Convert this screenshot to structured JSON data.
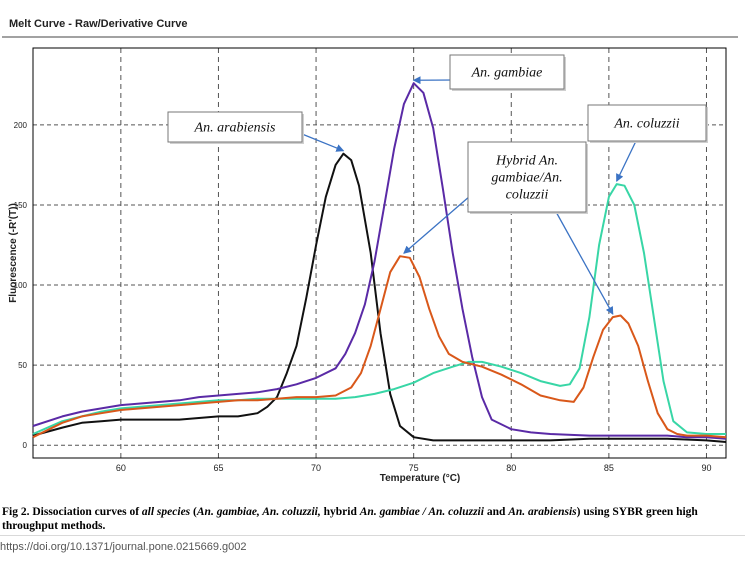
{
  "chart_data": {
    "type": "line",
    "title": "Melt Curve - Raw/Derivative Curve",
    "xlabel": "Temperature (°C)",
    "ylabel": "Fluorescence (-R'(T))",
    "xlim": [
      55.5,
      91
    ],
    "ylim": [
      -8,
      248
    ],
    "x_ticks": [
      60,
      65,
      70,
      75,
      80,
      85,
      90
    ],
    "y_ticks": [
      0,
      50,
      100,
      150,
      200
    ],
    "grid": true,
    "series": [
      {
        "name": "An. arabiensis",
        "color": "#111111",
        "points": [
          [
            55.5,
            6
          ],
          [
            57,
            11
          ],
          [
            58,
            14
          ],
          [
            59,
            15
          ],
          [
            60,
            16
          ],
          [
            61,
            16
          ],
          [
            62,
            16
          ],
          [
            63,
            16
          ],
          [
            64,
            17
          ],
          [
            65,
            18
          ],
          [
            66,
            18
          ],
          [
            67,
            20
          ],
          [
            67.5,
            24
          ],
          [
            68,
            30
          ],
          [
            68.5,
            45
          ],
          [
            69,
            62
          ],
          [
            69.5,
            92
          ],
          [
            70,
            125
          ],
          [
            70.5,
            155
          ],
          [
            71,
            175
          ],
          [
            71.4,
            182
          ],
          [
            71.8,
            178
          ],
          [
            72.2,
            162
          ],
          [
            72.8,
            120
          ],
          [
            73.3,
            70
          ],
          [
            73.8,
            32
          ],
          [
            74.3,
            12
          ],
          [
            75,
            5
          ],
          [
            76,
            3
          ],
          [
            78,
            3
          ],
          [
            80,
            3
          ],
          [
            82,
            3
          ],
          [
            84,
            4
          ],
          [
            86,
            4
          ],
          [
            88,
            4
          ],
          [
            90,
            3
          ],
          [
            91,
            2
          ]
        ]
      },
      {
        "name": "An. gambiae",
        "color": "#5a2aa6",
        "points": [
          [
            55.5,
            12
          ],
          [
            57,
            18
          ],
          [
            58,
            21
          ],
          [
            59,
            23
          ],
          [
            60,
            25
          ],
          [
            61,
            26
          ],
          [
            62,
            27
          ],
          [
            63,
            28
          ],
          [
            64,
            30
          ],
          [
            65,
            31
          ],
          [
            66,
            32
          ],
          [
            67,
            33
          ],
          [
            68,
            35
          ],
          [
            69,
            38
          ],
          [
            70,
            42
          ],
          [
            71,
            48
          ],
          [
            71.5,
            57
          ],
          [
            72,
            70
          ],
          [
            72.5,
            88
          ],
          [
            73,
            115
          ],
          [
            73.5,
            150
          ],
          [
            74,
            185
          ],
          [
            74.5,
            213
          ],
          [
            75,
            226
          ],
          [
            75.5,
            220
          ],
          [
            76,
            198
          ],
          [
            76.5,
            160
          ],
          [
            77,
            120
          ],
          [
            77.5,
            85
          ],
          [
            78,
            55
          ],
          [
            78.5,
            30
          ],
          [
            79,
            16
          ],
          [
            80,
            10
          ],
          [
            81,
            8
          ],
          [
            82,
            7
          ],
          [
            84,
            6
          ],
          [
            86,
            6
          ],
          [
            88,
            6
          ],
          [
            89,
            5
          ],
          [
            90,
            5
          ],
          [
            91,
            4
          ]
        ]
      },
      {
        "name": "An. coluzzii",
        "color": "#38d6a6",
        "points": [
          [
            55.5,
            7
          ],
          [
            57,
            15
          ],
          [
            58,
            18
          ],
          [
            59,
            21
          ],
          [
            60,
            23
          ],
          [
            61,
            24
          ],
          [
            62,
            25
          ],
          [
            63,
            26
          ],
          [
            64,
            27
          ],
          [
            65,
            28
          ],
          [
            66,
            28
          ],
          [
            67,
            29
          ],
          [
            68,
            29
          ],
          [
            69,
            29
          ],
          [
            70,
            29
          ],
          [
            71,
            29
          ],
          [
            72,
            30
          ],
          [
            73,
            32
          ],
          [
            74,
            35
          ],
          [
            75,
            39
          ],
          [
            76,
            45
          ],
          [
            77,
            49
          ],
          [
            77.8,
            52
          ],
          [
            78.5,
            52
          ],
          [
            79.5,
            49
          ],
          [
            80.5,
            45
          ],
          [
            81.5,
            40
          ],
          [
            82.5,
            37
          ],
          [
            83,
            38
          ],
          [
            83.5,
            48
          ],
          [
            84,
            80
          ],
          [
            84.5,
            125
          ],
          [
            85,
            155
          ],
          [
            85.4,
            163
          ],
          [
            85.8,
            162
          ],
          [
            86.3,
            150
          ],
          [
            86.8,
            120
          ],
          [
            87.3,
            80
          ],
          [
            87.8,
            40
          ],
          [
            88.3,
            15
          ],
          [
            89,
            8
          ],
          [
            90,
            7
          ],
          [
            91,
            7
          ]
        ]
      },
      {
        "name": "Hybrid An. gambiae/An. coluzzii",
        "color": "#d9581a",
        "points": [
          [
            55.5,
            5
          ],
          [
            57,
            14
          ],
          [
            58,
            18
          ],
          [
            59,
            20
          ],
          [
            60,
            22
          ],
          [
            61,
            23
          ],
          [
            62,
            24
          ],
          [
            63,
            25
          ],
          [
            64,
            26
          ],
          [
            65,
            27
          ],
          [
            66,
            28
          ],
          [
            67,
            28
          ],
          [
            68,
            29
          ],
          [
            69,
            30
          ],
          [
            70,
            30
          ],
          [
            71,
            31
          ],
          [
            71.8,
            36
          ],
          [
            72.3,
            45
          ],
          [
            72.8,
            62
          ],
          [
            73.3,
            85
          ],
          [
            73.8,
            108
          ],
          [
            74.3,
            118
          ],
          [
            74.8,
            117
          ],
          [
            75.3,
            105
          ],
          [
            75.8,
            85
          ],
          [
            76.3,
            68
          ],
          [
            76.8,
            57
          ],
          [
            77.5,
            52
          ],
          [
            78.5,
            49
          ],
          [
            79.5,
            44
          ],
          [
            80.5,
            38
          ],
          [
            81.5,
            31
          ],
          [
            82.5,
            28
          ],
          [
            83.2,
            27
          ],
          [
            83.7,
            36
          ],
          [
            84.2,
            55
          ],
          [
            84.7,
            72
          ],
          [
            85.2,
            80
          ],
          [
            85.6,
            81
          ],
          [
            86,
            76
          ],
          [
            86.5,
            62
          ],
          [
            87,
            40
          ],
          [
            87.5,
            20
          ],
          [
            88,
            10
          ],
          [
            88.5,
            7
          ],
          [
            89,
            6
          ],
          [
            90,
            6
          ],
          [
            91,
            5
          ]
        ]
      }
    ],
    "annotations": [
      {
        "label": "An. arabiensis",
        "target": [
          71.4,
          182
        ]
      },
      {
        "label": "An. gambiae",
        "target": [
          75,
          226
        ]
      },
      {
        "label": "An. coluzzii",
        "target": [
          85.4,
          163
        ]
      },
      {
        "label": "Hybrid An. gambiae/An. coluzzii",
        "targets": [
          [
            74.5,
            118
          ],
          [
            85.2,
            80
          ]
        ]
      }
    ]
  },
  "caption": {
    "fig": "Fig 2.",
    "seg1": " Dissociation curves of ",
    "i1": "all species",
    "seg2": " (",
    "i2": "An. gambiae, An. coluzzii,",
    "seg3": " hybrid ",
    "i3": "An. gambiae / An. coluzzii",
    "seg4": " and ",
    "i4": "An. arabiensis",
    "seg5": ") using SYBR green high throughput methods."
  },
  "doi": "https://doi.org/10.1371/journal.pone.0215669.g002"
}
